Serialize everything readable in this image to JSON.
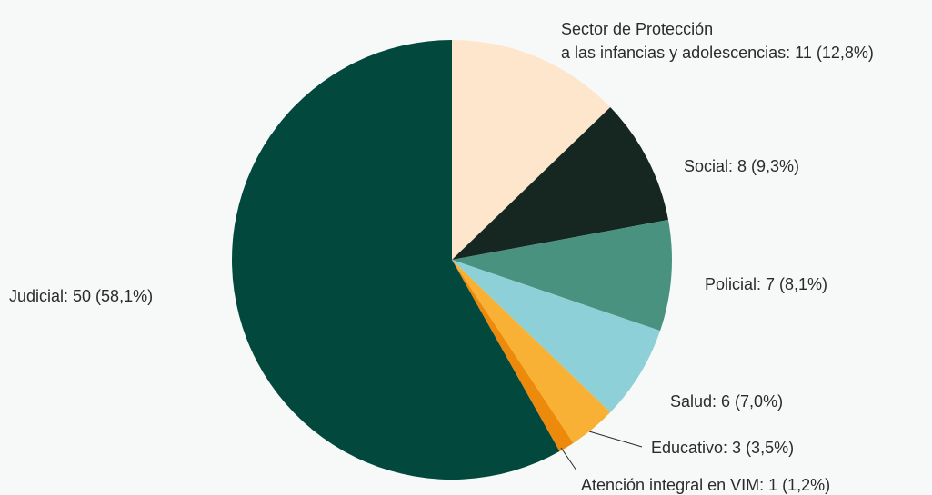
{
  "chart_data": {
    "type": "pie",
    "title": "",
    "slices": [
      {
        "label": "Judicial",
        "value": 50,
        "display": "Judicial: 50 (58,1%)",
        "color": "#02483c"
      },
      {
        "label_lines": [
          "Sector de Protección",
          "a las infancias y adolescencias: 11 (12,8%)"
        ],
        "label": "Sector de Protección a las infancias y adolescencias",
        "value": 11,
        "display": "Sector de Protección a las infancias y adolescencias: 11 (12,8%)",
        "color": "#fde6cc"
      },
      {
        "label": "Social",
        "value": 8,
        "display": "Social: 8 (9,3%)",
        "color": "#162620"
      },
      {
        "label": "Policial",
        "value": 7,
        "display": "Policial: 7 (8,1%)",
        "color": "#4a9280"
      },
      {
        "label": "Salud",
        "value": 6,
        "display": "Salud: 6 (7,0%)",
        "color": "#8dd0d8"
      },
      {
        "label": "Educativo",
        "value": 3,
        "display": "Educativo: 3 (3,5%)",
        "color": "#f8b135"
      },
      {
        "label": "Atención integral en VIM",
        "value": 1,
        "display": "Atención integral en VIM: 1 (1,2%)",
        "color": "#ee8a0b"
      }
    ],
    "start": "12 o'clock",
    "direction": "clockwise, starting with the second slice"
  }
}
